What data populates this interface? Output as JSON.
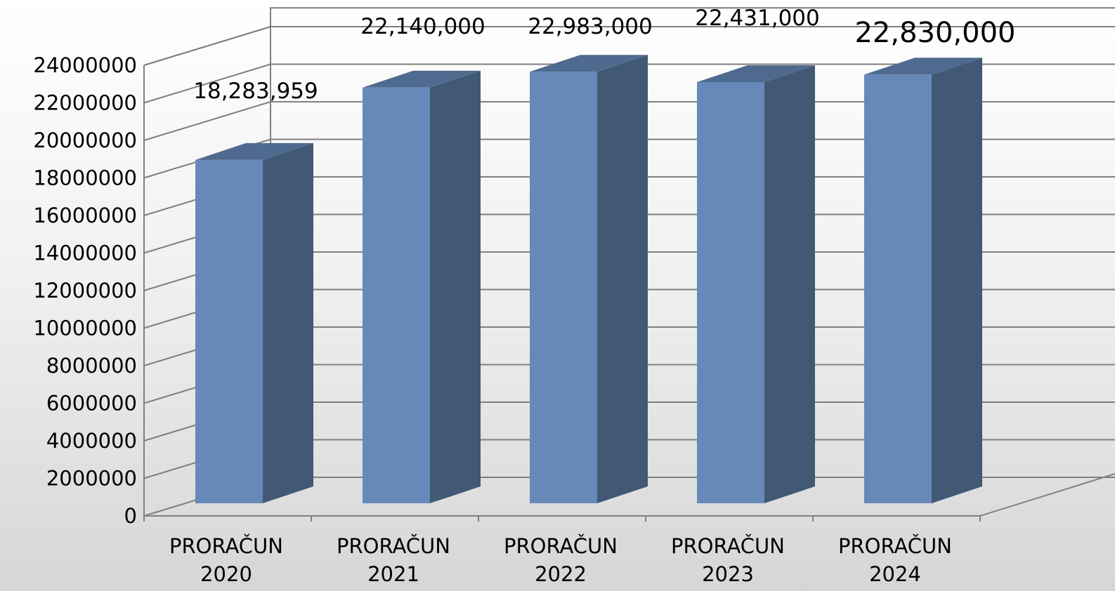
{
  "chart_data": {
    "type": "bar",
    "three_d": true,
    "categories": [
      [
        "PRORAČUN",
        "2020"
      ],
      [
        "PRORAČUN",
        "2021"
      ],
      [
        "PRORAČUN",
        "2022"
      ],
      [
        "PRORAČUN",
        "2023"
      ],
      [
        "PRORAČUN",
        "2024"
      ]
    ],
    "values": [
      18283959,
      22140000,
      22983000,
      22431000,
      22830000
    ],
    "data_labels": [
      "18,283,959",
      "22,140,000",
      "22,983,000",
      "22,431,000",
      "22,830,000"
    ],
    "yticks": [
      "0",
      "2000000",
      "4000000",
      "6000000",
      "8000000",
      "10000000",
      "12000000",
      "14000000",
      "16000000",
      "18000000",
      "20000000",
      "22000000",
      "24000000"
    ],
    "ylim": [
      0,
      24000000
    ],
    "grid": true,
    "legend": "none",
    "colors": {
      "bar_front": "#6789BA",
      "bar_side": "#425975",
      "bar_top": "#4E6A8F",
      "grid": "#7F7F7F"
    }
  }
}
